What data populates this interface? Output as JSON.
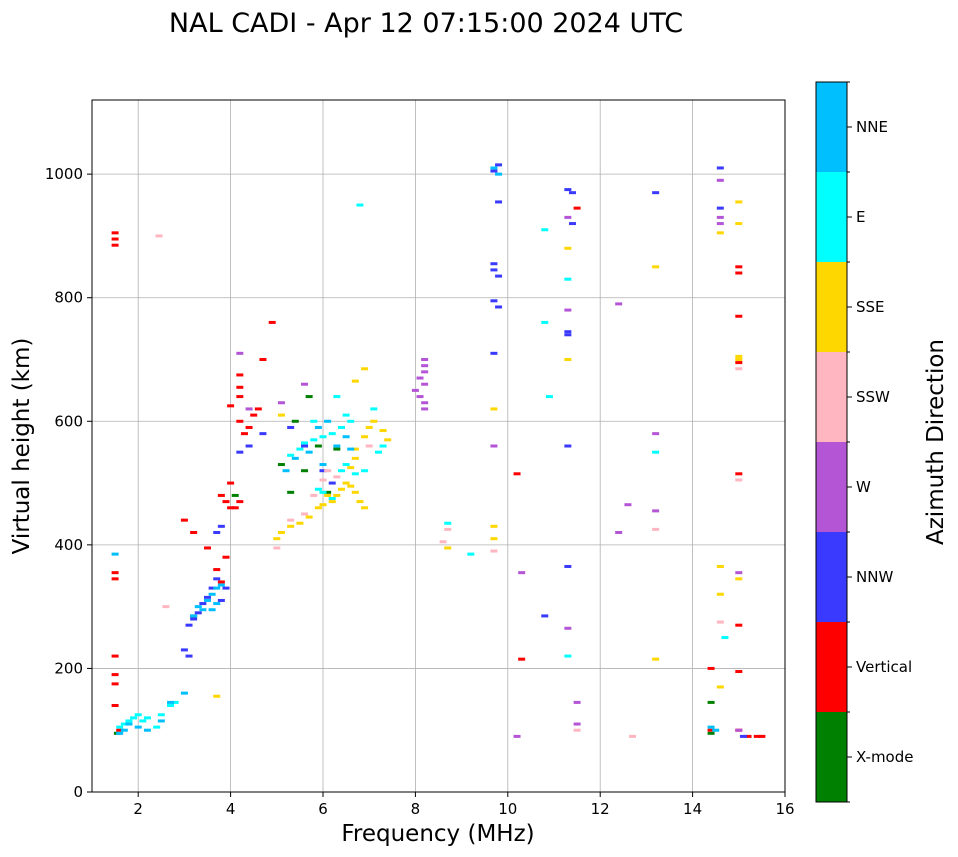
{
  "chart_data": {
    "type": "scatter",
    "title": "NAL CADI - Apr 12 07:15:00 2024 UTC",
    "xlabel": "Frequency (MHz)",
    "ylabel": "Virtual height (km)",
    "xlim": [
      1,
      16
    ],
    "ylim": [
      0,
      1120
    ],
    "xticks": [
      2,
      4,
      6,
      8,
      10,
      12,
      14,
      16
    ],
    "yticks": [
      0,
      200,
      400,
      600,
      800,
      1000
    ],
    "grid": true,
    "colorbar": {
      "label": "Azimuth Direction",
      "categories": [
        {
          "name": "X-mode",
          "color": "#008000"
        },
        {
          "name": "Vertical",
          "color": "#ff0000"
        },
        {
          "name": "NNW",
          "color": "#3a3aff"
        },
        {
          "name": "W",
          "color": "#b455d6"
        },
        {
          "name": "SSW",
          "color": "#ffb6c1"
        },
        {
          "name": "SSE",
          "color": "#ffd700"
        },
        {
          "name": "E",
          "color": "#00ffff"
        },
        {
          "name": "NNE",
          "color": "#00bfff"
        }
      ]
    },
    "series": [
      {
        "name": "X-mode",
        "points": [
          [
            1.55,
            95
          ],
          [
            3.2,
            285
          ],
          [
            4.1,
            480
          ],
          [
            5.3,
            485
          ],
          [
            5.6,
            520
          ],
          [
            5.9,
            560
          ],
          [
            6.1,
            485
          ],
          [
            5.4,
            600
          ],
          [
            5.7,
            640
          ],
          [
            14.4,
            145
          ],
          [
            14.4,
            95
          ],
          [
            6.3,
            555
          ],
          [
            5.1,
            530
          ]
        ]
      },
      {
        "name": "Vertical",
        "points": [
          [
            1.5,
            905
          ],
          [
            1.5,
            895
          ],
          [
            1.5,
            885
          ],
          [
            1.5,
            355
          ],
          [
            1.5,
            345
          ],
          [
            1.5,
            220
          ],
          [
            1.5,
            190
          ],
          [
            1.5,
            175
          ],
          [
            1.5,
            140
          ],
          [
            1.6,
            100
          ],
          [
            3.0,
            440
          ],
          [
            3.2,
            420
          ],
          [
            3.5,
            395
          ],
          [
            3.7,
            360
          ],
          [
            3.8,
            340
          ],
          [
            3.9,
            380
          ],
          [
            3.9,
            470
          ],
          [
            4.0,
            460
          ],
          [
            4.1,
            460
          ],
          [
            4.2,
            470
          ],
          [
            4.0,
            625
          ],
          [
            4.2,
            600
          ],
          [
            4.3,
            580
          ],
          [
            4.4,
            590
          ],
          [
            4.5,
            610
          ],
          [
            4.6,
            620
          ],
          [
            4.7,
            700
          ],
          [
            4.9,
            760
          ],
          [
            10.2,
            515
          ],
          [
            10.3,
            215
          ],
          [
            14.4,
            200
          ],
          [
            14.4,
            100
          ],
          [
            15.0,
            100
          ],
          [
            15.2,
            90
          ],
          [
            15.4,
            90
          ],
          [
            15.5,
            90
          ],
          [
            15.0,
            850
          ],
          [
            15.0,
            840
          ],
          [
            15.0,
            770
          ],
          [
            15.0,
            695
          ],
          [
            15.0,
            515
          ],
          [
            15.0,
            270
          ],
          [
            15.0,
            195
          ],
          [
            11.5,
            945
          ],
          [
            4.2,
            640
          ],
          [
            4.2,
            655
          ],
          [
            4.2,
            675
          ],
          [
            3.8,
            480
          ],
          [
            4.0,
            500
          ]
        ]
      },
      {
        "name": "NNW",
        "points": [
          [
            3.1,
            270
          ],
          [
            3.2,
            280
          ],
          [
            3.3,
            290
          ],
          [
            3.4,
            305
          ],
          [
            3.5,
            315
          ],
          [
            3.6,
            330
          ],
          [
            3.7,
            345
          ],
          [
            3.8,
            310
          ],
          [
            3.9,
            330
          ],
          [
            3.7,
            420
          ],
          [
            3.8,
            430
          ],
          [
            3.0,
            230
          ],
          [
            3.1,
            220
          ],
          [
            4.2,
            550
          ],
          [
            4.4,
            560
          ],
          [
            4.7,
            580
          ],
          [
            5.3,
            590
          ],
          [
            5.6,
            560
          ],
          [
            6.0,
            520
          ],
          [
            6.2,
            500
          ],
          [
            9.7,
            855
          ],
          [
            9.7,
            845
          ],
          [
            9.8,
            835
          ],
          [
            9.7,
            795
          ],
          [
            9.8,
            785
          ],
          [
            9.7,
            710
          ],
          [
            11.3,
            975
          ],
          [
            11.3,
            745
          ],
          [
            11.3,
            740
          ],
          [
            11.3,
            560
          ],
          [
            11.3,
            365
          ],
          [
            10.8,
            285
          ],
          [
            14.6,
            1010
          ],
          [
            14.6,
            945
          ],
          [
            13.2,
            970
          ],
          [
            9.8,
            1015
          ],
          [
            9.7,
            1005
          ],
          [
            9.8,
            955
          ],
          [
            11.4,
            970
          ],
          [
            11.4,
            920
          ],
          [
            15.1,
            90
          ]
        ]
      },
      {
        "name": "W",
        "points": [
          [
            8.2,
            700
          ],
          [
            8.2,
            690
          ],
          [
            8.2,
            680
          ],
          [
            8.1,
            670
          ],
          [
            8.2,
            660
          ],
          [
            8.0,
            650
          ],
          [
            8.1,
            640
          ],
          [
            8.2,
            630
          ],
          [
            8.2,
            620
          ],
          [
            4.2,
            710
          ],
          [
            4.4,
            620
          ],
          [
            5.1,
            630
          ],
          [
            5.6,
            660
          ],
          [
            9.7,
            560
          ],
          [
            12.4,
            790
          ],
          [
            12.6,
            465
          ],
          [
            12.4,
            420
          ],
          [
            13.2,
            580
          ],
          [
            13.2,
            455
          ],
          [
            11.3,
            265
          ],
          [
            10.3,
            355
          ],
          [
            10.2,
            90
          ],
          [
            14.6,
            990
          ],
          [
            14.6,
            930
          ],
          [
            14.6,
            920
          ],
          [
            15.0,
            355
          ],
          [
            15.0,
            100
          ],
          [
            11.5,
            145
          ],
          [
            11.5,
            110
          ],
          [
            11.3,
            780
          ],
          [
            11.3,
            930
          ]
        ]
      },
      {
        "name": "SSW",
        "points": [
          [
            2.45,
            900
          ],
          [
            2.6,
            300
          ],
          [
            5.0,
            395
          ],
          [
            5.3,
            440
          ],
          [
            5.6,
            450
          ],
          [
            5.8,
            480
          ],
          [
            6.0,
            505
          ],
          [
            6.1,
            520
          ],
          [
            6.3,
            510
          ],
          [
            7.0,
            560
          ],
          [
            8.7,
            425
          ],
          [
            8.6,
            405
          ],
          [
            9.7,
            390
          ],
          [
            12.7,
            90
          ],
          [
            13.2,
            425
          ],
          [
            14.6,
            275
          ],
          [
            15.0,
            505
          ],
          [
            15.0,
            685
          ],
          [
            11.5,
            100
          ]
        ]
      },
      {
        "name": "SSE",
        "points": [
          [
            5.0,
            410
          ],
          [
            5.1,
            420
          ],
          [
            5.3,
            430
          ],
          [
            5.5,
            435
          ],
          [
            5.7,
            445
          ],
          [
            5.9,
            460
          ],
          [
            6.0,
            465
          ],
          [
            6.1,
            480
          ],
          [
            6.2,
            470
          ],
          [
            6.3,
            480
          ],
          [
            6.4,
            490
          ],
          [
            6.5,
            500
          ],
          [
            6.6,
            495
          ],
          [
            6.7,
            485
          ],
          [
            6.8,
            470
          ],
          [
            6.9,
            460
          ],
          [
            6.6,
            525
          ],
          [
            6.7,
            540
          ],
          [
            6.7,
            555
          ],
          [
            6.9,
            575
          ],
          [
            7.0,
            590
          ],
          [
            7.1,
            600
          ],
          [
            7.3,
            585
          ],
          [
            7.4,
            570
          ],
          [
            6.7,
            665
          ],
          [
            6.9,
            685
          ],
          [
            8.7,
            395
          ],
          [
            9.7,
            620
          ],
          [
            9.7,
            430
          ],
          [
            9.7,
            410
          ],
          [
            11.3,
            880
          ],
          [
            11.3,
            700
          ],
          [
            13.2,
            850
          ],
          [
            13.2,
            215
          ],
          [
            14.6,
            905
          ],
          [
            14.6,
            365
          ],
          [
            14.6,
            320
          ],
          [
            14.6,
            170
          ],
          [
            15.0,
            955
          ],
          [
            15.0,
            920
          ],
          [
            15.0,
            705
          ],
          [
            15.0,
            700
          ],
          [
            15.0,
            345
          ],
          [
            3.7,
            155
          ],
          [
            5.1,
            610
          ]
        ]
      },
      {
        "name": "E",
        "points": [
          [
            1.6,
            105
          ],
          [
            1.7,
            110
          ],
          [
            1.8,
            115
          ],
          [
            1.9,
            120
          ],
          [
            2.0,
            125
          ],
          [
            2.1,
            115
          ],
          [
            2.2,
            120
          ],
          [
            2.4,
            105
          ],
          [
            2.5,
            125
          ],
          [
            2.7,
            140
          ],
          [
            2.8,
            145
          ],
          [
            5.3,
            545
          ],
          [
            5.5,
            555
          ],
          [
            5.6,
            565
          ],
          [
            5.8,
            570
          ],
          [
            6.0,
            575
          ],
          [
            6.2,
            580
          ],
          [
            6.4,
            590
          ],
          [
            6.5,
            610
          ],
          [
            6.6,
            600
          ],
          [
            5.9,
            490
          ],
          [
            6.0,
            485
          ],
          [
            6.2,
            475
          ],
          [
            6.4,
            520
          ],
          [
            6.5,
            530
          ],
          [
            6.7,
            515
          ],
          [
            6.9,
            520
          ],
          [
            7.2,
            550
          ],
          [
            7.3,
            560
          ],
          [
            7.1,
            620
          ],
          [
            8.7,
            435
          ],
          [
            9.2,
            385
          ],
          [
            6.8,
            950
          ],
          [
            10.8,
            910
          ],
          [
            10.8,
            760
          ],
          [
            10.9,
            640
          ],
          [
            11.3,
            830
          ],
          [
            11.3,
            220
          ],
          [
            13.2,
            550
          ],
          [
            14.7,
            250
          ],
          [
            5.8,
            600
          ],
          [
            6.3,
            640
          ]
        ]
      },
      {
        "name": "NNE",
        "points": [
          [
            1.5,
            385
          ],
          [
            1.6,
            95
          ],
          [
            1.7,
            100
          ],
          [
            1.8,
            110
          ],
          [
            2.0,
            105
          ],
          [
            2.2,
            100
          ],
          [
            2.5,
            115
          ],
          [
            2.7,
            145
          ],
          [
            3.0,
            160
          ],
          [
            3.2,
            285
          ],
          [
            3.3,
            300
          ],
          [
            3.4,
            295
          ],
          [
            3.5,
            310
          ],
          [
            3.6,
            320
          ],
          [
            3.7,
            330
          ],
          [
            3.8,
            335
          ],
          [
            3.7,
            305
          ],
          [
            3.6,
            295
          ],
          [
            5.2,
            520
          ],
          [
            5.4,
            540
          ],
          [
            5.7,
            550
          ],
          [
            6.0,
            530
          ],
          [
            6.3,
            560
          ],
          [
            6.5,
            575
          ],
          [
            6.6,
            555
          ],
          [
            5.9,
            590
          ],
          [
            6.1,
            600
          ],
          [
            9.7,
            1010
          ],
          [
            9.8,
            1000
          ],
          [
            14.4,
            105
          ],
          [
            14.5,
            100
          ]
        ]
      }
    ]
  }
}
